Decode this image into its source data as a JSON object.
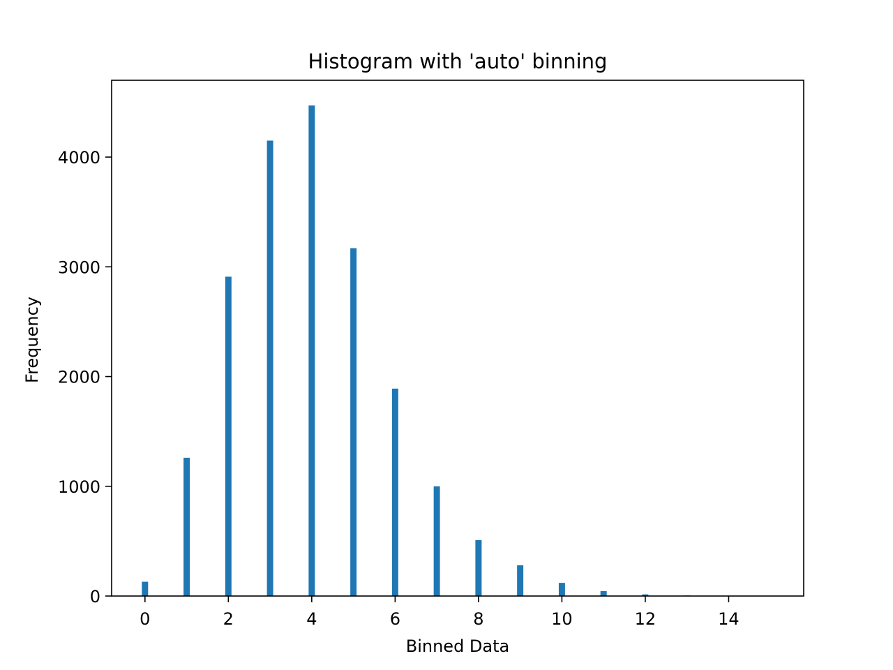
{
  "chart_data": {
    "type": "bar",
    "title": "Histogram with 'auto' binning",
    "xlabel": "Binned Data",
    "ylabel": "Frequency",
    "x": [
      0,
      1,
      2,
      3,
      4,
      5,
      6,
      7,
      8,
      9,
      10,
      11,
      12,
      13,
      14,
      15
    ],
    "values": [
      130,
      1260,
      2910,
      4150,
      4470,
      3170,
      1890,
      1000,
      510,
      280,
      120,
      45,
      15,
      5,
      2,
      1
    ],
    "bar_width": 0.15,
    "xlim": [
      -0.8,
      15.8
    ],
    "ylim": [
      0,
      4700
    ],
    "xticks": [
      0,
      2,
      4,
      6,
      8,
      10,
      12,
      14
    ],
    "xtick_labels": [
      "0",
      "2",
      "4",
      "6",
      "8",
      "10",
      "12",
      "14"
    ],
    "yticks": [
      0,
      1000,
      2000,
      3000,
      4000
    ],
    "ytick_labels": [
      "0",
      "1000",
      "2000",
      "3000",
      "4000"
    ],
    "grid": false,
    "bar_color": "#1f77b4"
  }
}
